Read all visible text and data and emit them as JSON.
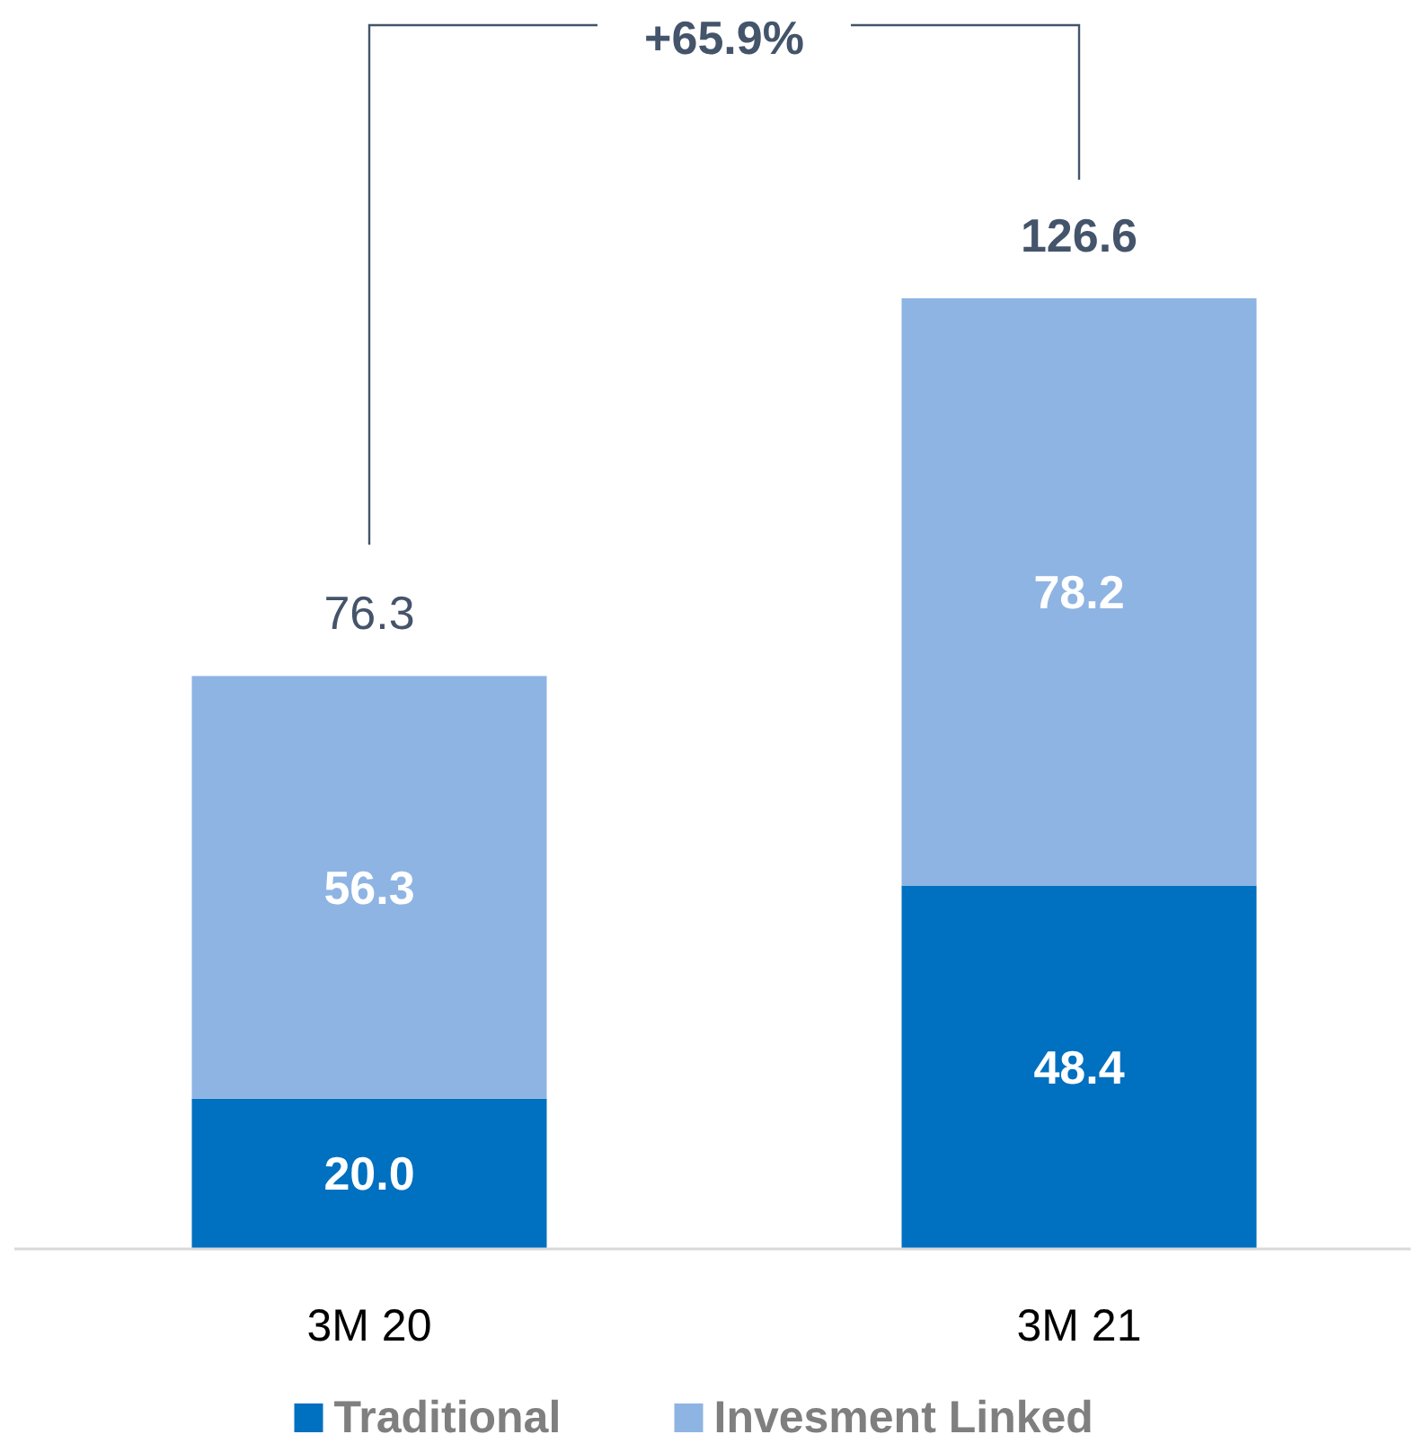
{
  "chart_data": {
    "type": "bar",
    "stacked": true,
    "categories": [
      "3M 20",
      "3M 21"
    ],
    "series": [
      {
        "name": "Traditional",
        "color": "#0070c0",
        "values": [
          20.0,
          48.4
        ],
        "value_labels": [
          "20.0",
          "48.4"
        ]
      },
      {
        "name": "Invesment Linked",
        "color": "#8eb4e3",
        "values": [
          56.3,
          78.2
        ],
        "value_labels": [
          "56.3",
          "78.2"
        ]
      }
    ],
    "totals": [
      "76.3",
      "126.6"
    ],
    "annotations": [
      "+65.9%"
    ],
    "legend": "bottom"
  }
}
